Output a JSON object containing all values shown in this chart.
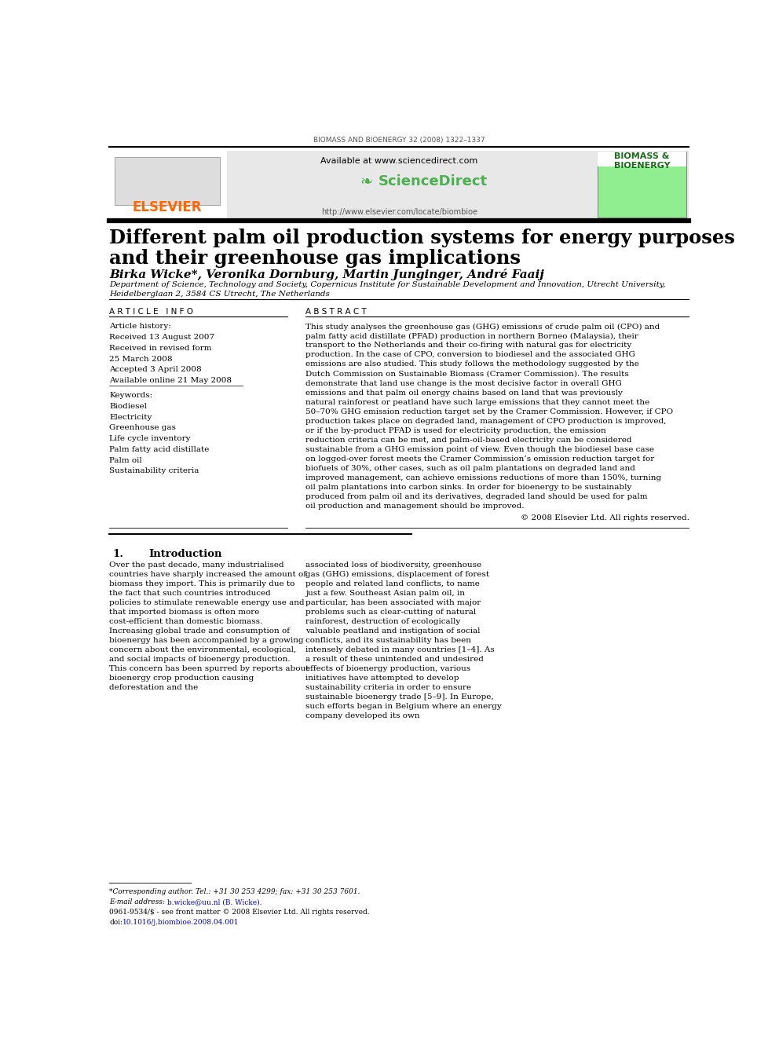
{
  "journal_header": "BIOMASS AND BIOENERGY 32 (2008) 1322–1337",
  "available_at": "Available at www.sciencedirect.com",
  "url": "http://www.elsevier.com/locate/biombioe",
  "journal_name_right": "BIOMASS &\nBIOENERGY",
  "title_line1": "Different palm oil production systems for energy purposes",
  "title_line2": "and their greenhouse gas implications",
  "authors": "Birka Wicke*, Veronika Dornburg, Martin Junginger, André Faaij",
  "affiliation_line1": "Department of Science, Technology and Society, Copernicus Institute for Sustainable Development and Innovation, Utrecht University,",
  "affiliation_line2": "Heidelberglaan 2, 3584 CS Utrecht, The Netherlands",
  "article_info_header": "A R T I C L E   I N F O",
  "abstract_header": "A B S T R A C T",
  "article_history_label": "Article history:",
  "received1": "Received 13 August 2007",
  "received2": "Received in revised form",
  "received2b": "25 March 2008",
  "accepted": "Accepted 3 April 2008",
  "available_online": "Available online 21 May 2008",
  "keywords_label": "Keywords:",
  "keywords": [
    "Biodiesel",
    "Electricity",
    "Greenhouse gas",
    "Life cycle inventory",
    "Palm fatty acid distillate",
    "Palm oil",
    "Sustainability criteria"
  ],
  "abstract_text": "This study analyses the greenhouse gas (GHG) emissions of crude palm oil (CPO) and palm fatty acid distillate (PFAD) production in northern Borneo (Malaysia), their transport to the Netherlands and their co-firing with natural gas for electricity production. In the case of CPO, conversion to biodiesel and the associated GHG emissions are also studied. This study follows the methodology suggested by the Dutch Commission on Sustainable Biomass (Cramer Commission). The results demonstrate that land use change is the most decisive factor in overall GHG emissions and that palm oil energy chains based on land that was previously natural rainforest or peatland have such large emissions that they cannot meet the 50–70% GHG emission reduction target set by the Cramer Commission. However, if CPO production takes place on degraded land, management of CPO production is improved, or if the by-product PFAD is used for electricity production, the emission reduction criteria can be met, and palm-oil-based electricity can be considered sustainable from a GHG emission point of view. Even though the biodiesel base case on logged-over forest meets the Cramer Commission’s emission reduction target for biofuels of 30%, other cases, such as oil palm plantations on degraded land and improved management, can achieve emissions reductions of more than 150%, turning oil palm plantations into carbon sinks. In order for bioenergy to be sustainably produced from palm oil and its derivatives, degraded land should be used for palm oil production and management should be improved.",
  "copyright": "© 2008 Elsevier Ltd. All rights reserved.",
  "section1_num": "1.",
  "section1_title": "Introduction",
  "intro_col1": "Over the past decade, many industrialised countries have sharply increased the amount of biomass they import. This is primarily due to the fact that such countries introduced policies to stimulate renewable energy use and that imported biomass is often more cost-efficient than domestic biomass. Increasing global trade and consumption of bioenergy has been accompanied by a growing concern about the environmental, ecological, and social impacts of bioenergy production. This concern has been spurred by reports about bioenergy crop production causing deforestation and the",
  "intro_col2": "associated loss of biodiversity, greenhouse gas (GHG) emissions, displacement of forest people and related land conflicts, to name just a few. Southeast Asian palm oil, in particular, has been associated with major problems such as clear-cutting of natural rainforest, destruction of ecologically valuable peatland and instigation of social conflicts, and its sustainability has been intensely debated in many countries [1–4]. As a result of these unintended and undesired effects of bioenergy production, various initiatives have attempted to develop sustainability criteria in order to ensure sustainable bioenergy trade [5–9]. In Europe, such efforts began in Belgium where an energy company developed its own",
  "footnote1": "*Corresponding author. Tel.: +31 30 253 4299; fax: +31 30 253 7601.",
  "footnote2_prefix": "E-mail address: ",
  "footnote2_link": "b.wicke@uu.nl (B. Wicke).",
  "footnote3": "0961-9534/$ - see front matter © 2008 Elsevier Ltd. All rights reserved.",
  "footnote4_prefix": "doi:",
  "footnote4_link": "10.1016/j.biombioe.2008.04.001",
  "elsevier_color": "#FF6600",
  "sciencedirect_color": "#4CAF50",
  "link_color": "#0000CC",
  "background_color": "#FFFFFF",
  "header_bg": "#E8E8E8",
  "journal_cover_bg": "#90EE90"
}
